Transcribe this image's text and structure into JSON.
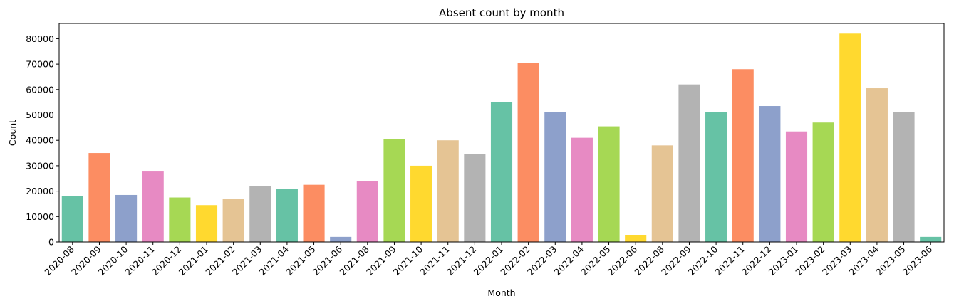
{
  "chart_data": {
    "type": "bar",
    "title": "Absent count by month",
    "xlabel": "Month",
    "ylabel": "Count",
    "ylim": [
      0,
      86000
    ],
    "yticks": [
      0,
      10000,
      20000,
      30000,
      40000,
      50000,
      60000,
      70000,
      80000
    ],
    "grid": false,
    "categories": [
      "2020-08",
      "2020-09",
      "2020-10",
      "2020-11",
      "2020-12",
      "2021-01",
      "2021-02",
      "2021-03",
      "2021-04",
      "2021-05",
      "2021-06",
      "2021-08",
      "2021-09",
      "2021-10",
      "2021-11",
      "2021-12",
      "2022-01",
      "2022-02",
      "2022-03",
      "2022-04",
      "2022-05",
      "2022-06",
      "2022-08",
      "2022-09",
      "2022-10",
      "2022-11",
      "2022-12",
      "2023-01",
      "2023-02",
      "2023-03",
      "2023-04",
      "2023-05",
      "2023-06"
    ],
    "values": [
      18000,
      35000,
      18500,
      28000,
      17500,
      14500,
      17000,
      22000,
      21000,
      22500,
      2000,
      24000,
      40500,
      30000,
      40000,
      34500,
      55000,
      70500,
      51000,
      41000,
      45500,
      2800,
      38000,
      62000,
      51000,
      68000,
      53500,
      43500,
      47000,
      82000,
      60500,
      51000,
      2000
    ],
    "palette": [
      "#66c2a5",
      "#fc8d62",
      "#8da0cb",
      "#e78ac3",
      "#a6d854",
      "#ffd92f",
      "#e5c494",
      "#b3b3b3"
    ]
  }
}
